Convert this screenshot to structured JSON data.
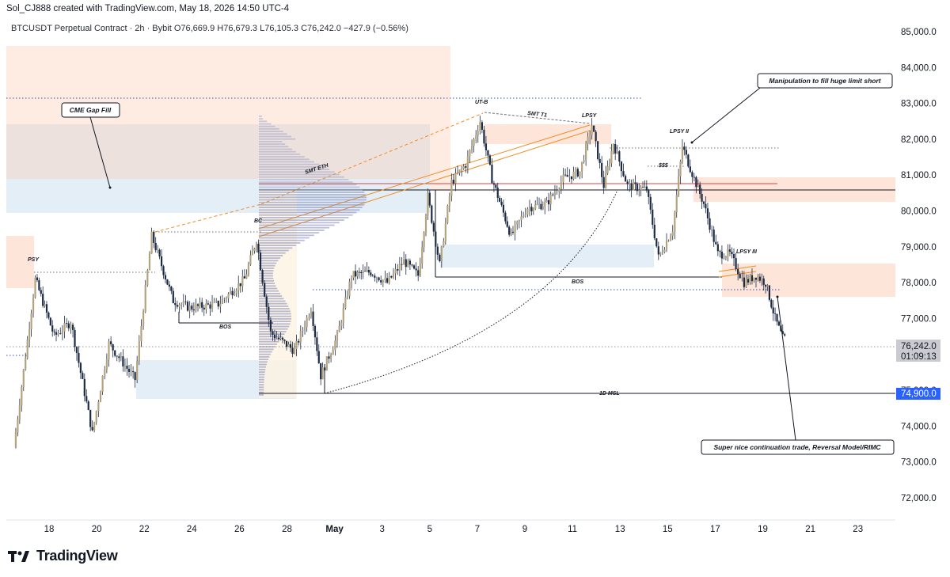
{
  "credit": "Sol_CJ888 created with TradingView.com, May 18, 2026 14:50 UTC-4",
  "legend": {
    "symbol": "BTCUSDT Perpetual Contract · 2h · Bybit",
    "open": "O76,669.9",
    "high": "H76,679.3",
    "low": "L76,105.3",
    "close": "C76,242.0",
    "change": "−427.9 (−0.56%)"
  },
  "brand": "TradingView",
  "colors": {
    "up": "#B3A27C",
    "down": "#1C2A43",
    "supply": "#FDE5DA",
    "demand": "#E3EEF7",
    "fib": "#F08C1F",
    "price_tag": "#6B6E76",
    "level_tag": "#2962FF"
  },
  "chart_data": {
    "type": "candlestick",
    "ylim": [
      71500,
      85400
    ],
    "y_ticks": [
      "72,000.0",
      "73,000.0",
      "74,000.0",
      "75,000.0",
      "76,000.0",
      "77,000.0",
      "78,000.0",
      "79,000.0",
      "80,000.0",
      "81,000.0",
      "82,000.0",
      "83,000.0",
      "84,000.0",
      "85,000.0"
    ],
    "x_ticks": [
      "18",
      "20",
      "22",
      "24",
      "26",
      "28",
      "May",
      "3",
      "5",
      "7",
      "9",
      "11",
      "13",
      "15",
      "17",
      "19",
      "21",
      "23"
    ],
    "last_price": "76,242.0",
    "countdown": "01:09:13",
    "level_label": "74,900.0",
    "swing_points": [
      {
        "day": 16.6,
        "price": 73400
      },
      {
        "day": 17.5,
        "price": 78100
      },
      {
        "day": 18.3,
        "price": 76500
      },
      {
        "day": 19.0,
        "price": 76900
      },
      {
        "day": 19.9,
        "price": 73800
      },
      {
        "day": 20.6,
        "price": 76300
      },
      {
        "day": 21.7,
        "price": 75300
      },
      {
        "day": 22.4,
        "price": 79300
      },
      {
        "day": 23.3,
        "price": 77500
      },
      {
        "day": 24.0,
        "price": 77300
      },
      {
        "day": 25.2,
        "price": 77400
      },
      {
        "day": 26.3,
        "price": 78100
      },
      {
        "day": 26.8,
        "price": 79200
      },
      {
        "day": 27.4,
        "price": 76600
      },
      {
        "day": 28.4,
        "price": 76100
      },
      {
        "day": 29.1,
        "price": 77300
      },
      {
        "day": 29.5,
        "price": 75400
      },
      {
        "day": 30.2,
        "price": 76500
      },
      {
        "day": 30.8,
        "price": 78200
      },
      {
        "day": 31.6,
        "price": 78300
      },
      {
        "day": 32.3,
        "price": 78000
      },
      {
        "day": 33.0,
        "price": 78600
      },
      {
        "day": 33.6,
        "price": 78200
      },
      {
        "day": 34.0,
        "price": 80400
      },
      {
        "day": 34.5,
        "price": 78500
      },
      {
        "day": 35.0,
        "price": 80800
      },
      {
        "day": 35.6,
        "price": 81300
      },
      {
        "day": 36.2,
        "price": 82500
      },
      {
        "day": 36.7,
        "price": 80900
      },
      {
        "day": 37.5,
        "price": 79300
      },
      {
        "day": 38.2,
        "price": 80100
      },
      {
        "day": 39.0,
        "price": 80200
      },
      {
        "day": 39.7,
        "price": 80900
      },
      {
        "day": 40.4,
        "price": 81100
      },
      {
        "day": 40.9,
        "price": 82400
      },
      {
        "day": 41.4,
        "price": 80700
      },
      {
        "day": 41.8,
        "price": 81900
      },
      {
        "day": 42.4,
        "price": 80700
      },
      {
        "day": 43.2,
        "price": 80600
      },
      {
        "day": 43.7,
        "price": 78700
      },
      {
        "day": 44.3,
        "price": 79500
      },
      {
        "day": 44.7,
        "price": 81800
      },
      {
        "day": 45.2,
        "price": 80900
      },
      {
        "day": 45.6,
        "price": 80200
      },
      {
        "day": 46.2,
        "price": 78800
      },
      {
        "day": 46.7,
        "price": 78800
      },
      {
        "day": 47.3,
        "price": 78000
      },
      {
        "day": 47.8,
        "price": 78200
      },
      {
        "day": 48.2,
        "price": 78000
      },
      {
        "day": 48.6,
        "price": 77000
      },
      {
        "day": 49.0,
        "price": 76300
      }
    ]
  },
  "annotations": {
    "psy": "PSY",
    "bc": "BC",
    "ut_b": "UT-B",
    "smt_t1": "SMT T1",
    "lpsy": "LPSY",
    "lpsy_ii": "LPSY II",
    "lpsy_iii": "LPSY III",
    "smt_eth": "SMT ETH",
    "liquidity": "$$$",
    "bos": "BOS",
    "msl": "1D MSL",
    "cme": "CME Gap Fill",
    "manipulation": "Manipulation to fill huge limit short",
    "continuation": "Super nice continuation trade, Reversal Model/RIMC"
  }
}
